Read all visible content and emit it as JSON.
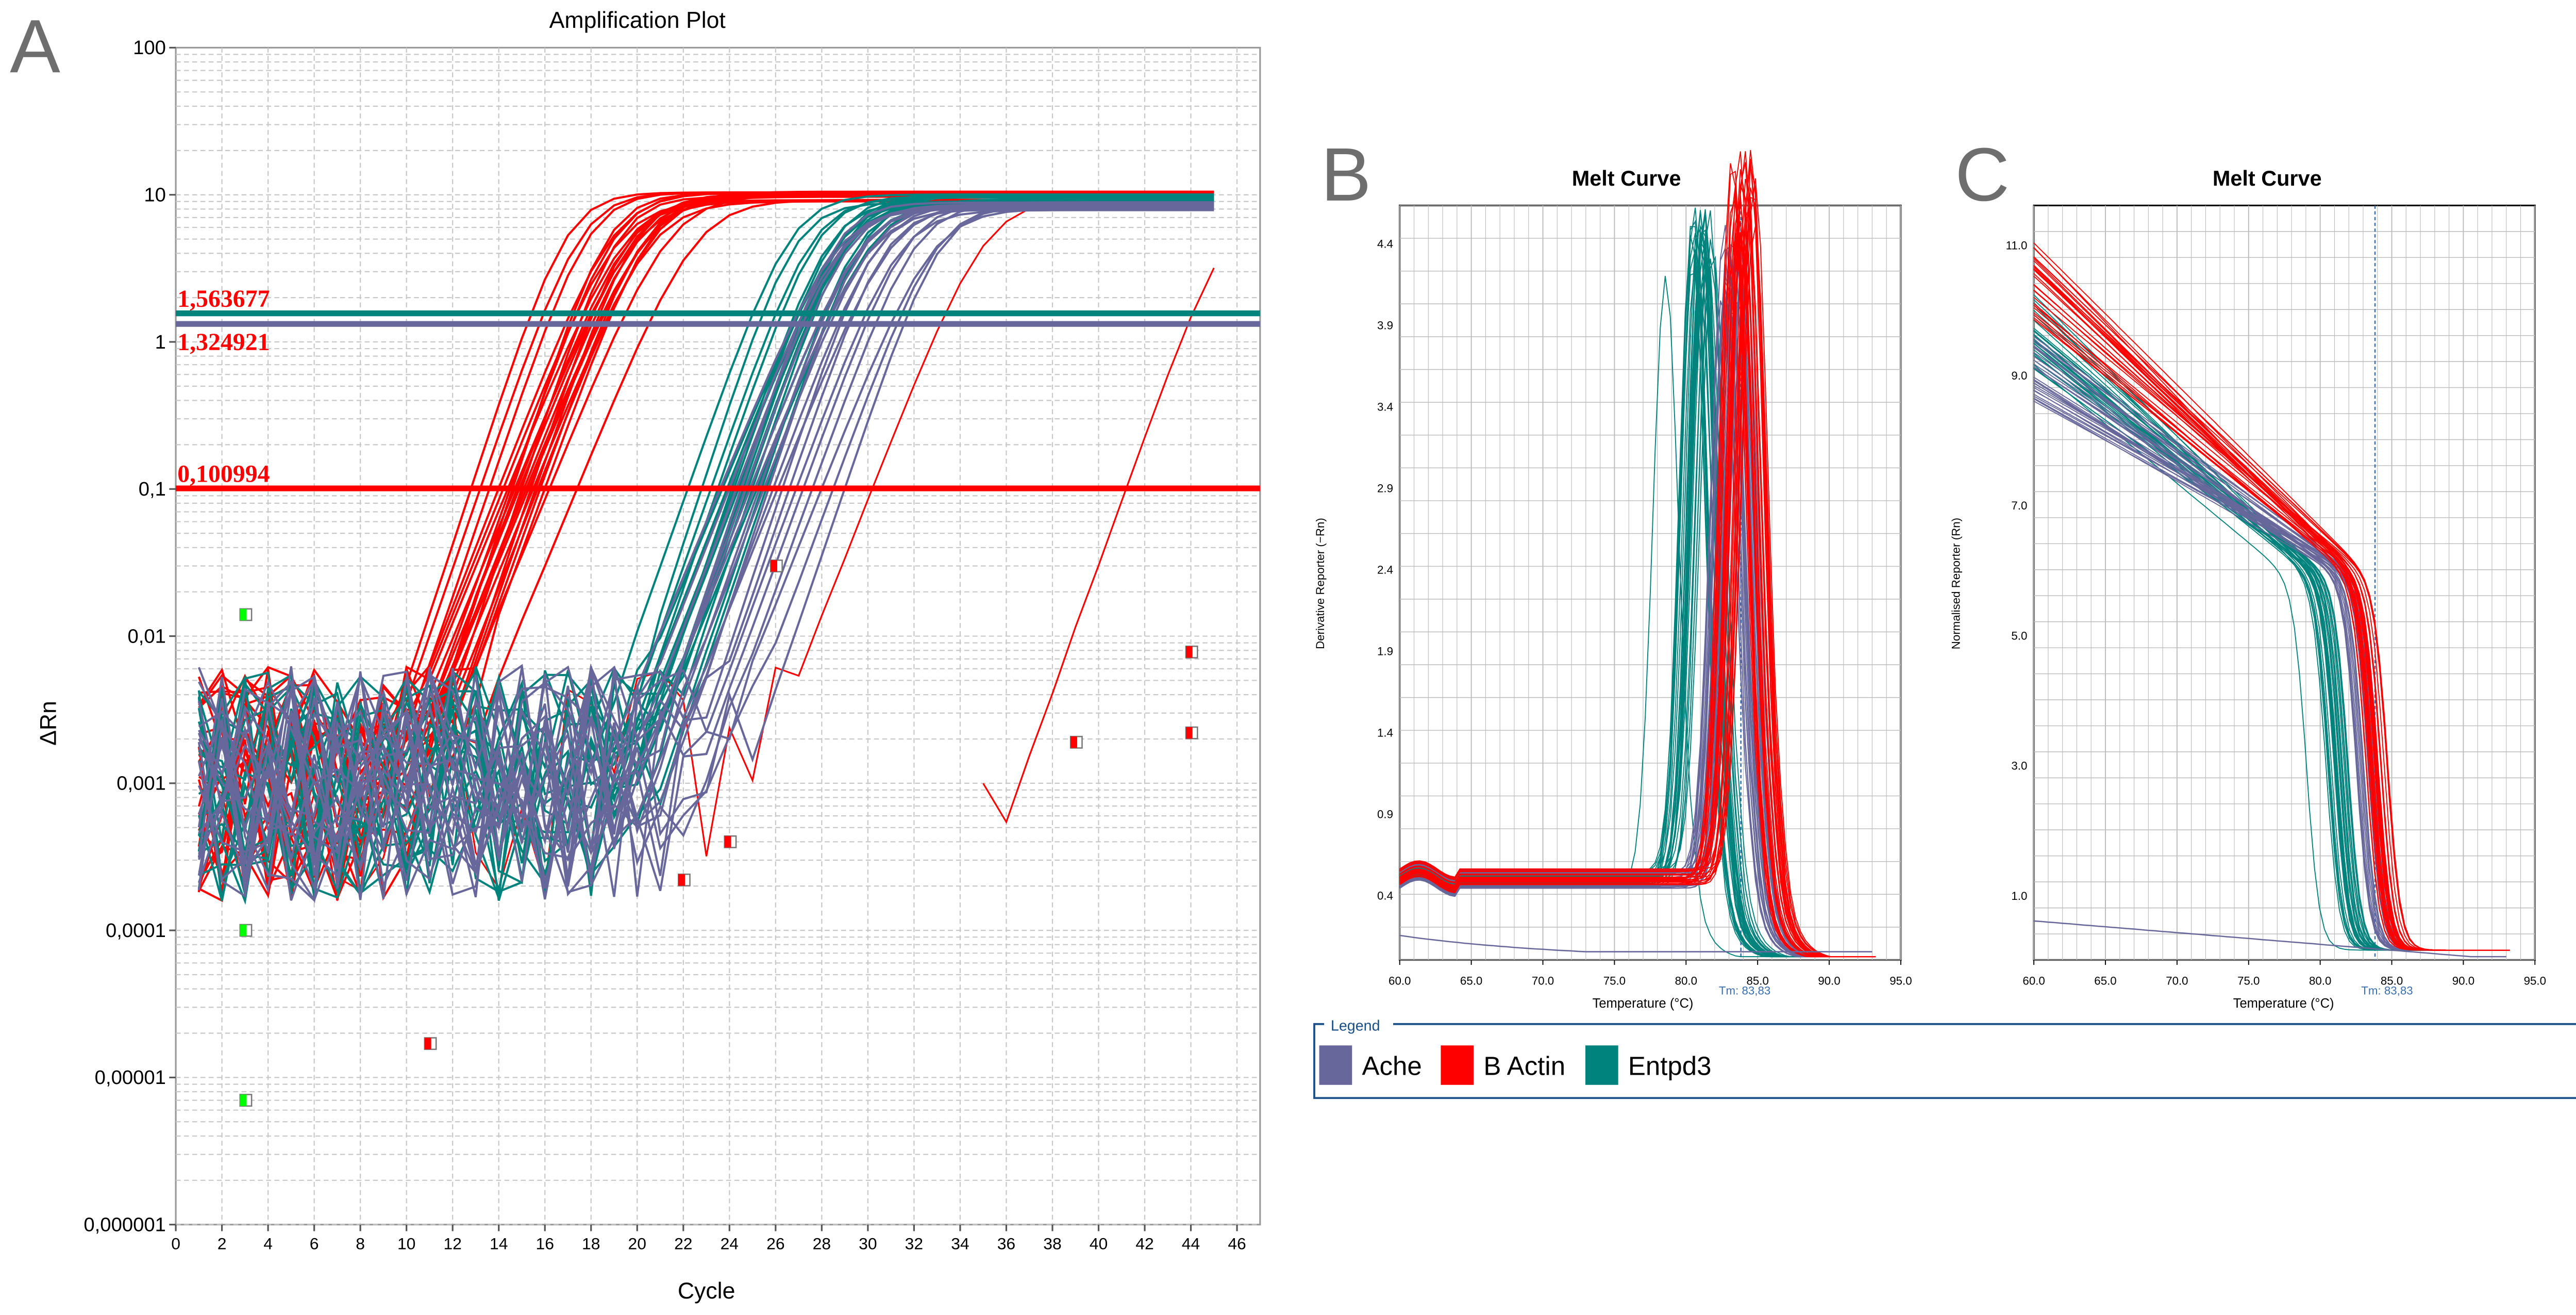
{
  "panels": {
    "a": "A",
    "b": "B",
    "c": "C"
  },
  "legend": {
    "title": "Legend",
    "items": [
      {
        "label": "Ache",
        "color": "#67679b"
      },
      {
        "label": "B Actin",
        "color": "#ff0000"
      },
      {
        "label": "Entpd3",
        "color": "#00827d"
      }
    ]
  },
  "chart_data": [
    {
      "type": "line",
      "title": "Amplification Plot",
      "xlabel": "Cycle",
      "ylabel": "ΔRn",
      "xlim": [
        0,
        47
      ],
      "ylim": [
        1e-06,
        100
      ],
      "yscale": "log",
      "grid": true,
      "xticks": [
        "0",
        "2",
        "4",
        "6",
        "8",
        "10",
        "12",
        "14",
        "16",
        "18",
        "20",
        "22",
        "24",
        "26",
        "28",
        "30",
        "32",
        "34",
        "36",
        "38",
        "40",
        "42",
        "44",
        "46"
      ],
      "yticks": [
        "0,000001",
        "0,00001",
        "0,0001",
        "0,001",
        "0,01",
        "0,1",
        "1",
        "10",
        "100"
      ],
      "thresholds": [
        {
          "label": "1,563677",
          "value": 1.563677,
          "color": "#00827d"
        },
        {
          "label": "1,324921",
          "value": 1.324921,
          "color": "#67679b"
        },
        {
          "label": "0,100994",
          "value": 0.100994,
          "color": "#ff0000"
        }
      ],
      "series": [
        {
          "name": "B Actin",
          "color": "#ff0000",
          "plateau": 10,
          "ct_at_threshold": [
            12.8,
            13.2,
            13.6,
            14.0,
            14.2,
            14.4,
            14.5,
            14.6,
            14.7,
            14.8,
            14.9,
            15.0,
            15.1,
            15.2,
            15.3,
            15.4,
            15.5,
            15.6,
            15.7,
            15.8,
            16.0,
            16.2,
            17.4,
            30.2,
            41.2
          ]
        },
        {
          "name": "Entpd3",
          "color": "#00827d",
          "plateau": 9.6,
          "ct_at_threshold": [
            22.2,
            22.8,
            23.2,
            23.5,
            23.7,
            23.9,
            24.0,
            24.1,
            24.2,
            24.3,
            24.4,
            24.5,
            24.6,
            24.7,
            24.8,
            24.9,
            25.0,
            25.2,
            25.4,
            25.6
          ]
        },
        {
          "name": "Ache",
          "color": "#67679b",
          "plateau": 8.6,
          "ct_at_threshold": [
            23.6,
            24.0,
            24.3,
            24.5,
            24.7,
            24.9,
            25.1,
            25.3,
            25.5,
            25.7,
            25.9,
            26.1,
            26.3,
            26.6,
            26.9,
            27.2,
            27.6,
            28.0,
            28.5,
            29.0
          ]
        }
      ],
      "markers": [
        {
          "cycle": 3,
          "value": 0.014,
          "color": "#00ff00"
        },
        {
          "cycle": 3,
          "value": 0.0001,
          "color": "#00ff00"
        },
        {
          "cycle": 3,
          "value": 7e-06,
          "color": "#00ff00"
        },
        {
          "cycle": 11,
          "value": 1.7e-05,
          "color": "#ff0000"
        },
        {
          "cycle": 22,
          "value": 0.00022,
          "color": "#ff0000"
        },
        {
          "cycle": 24,
          "value": 0.0004,
          "color": "#ff0000"
        },
        {
          "cycle": 26,
          "value": 0.03,
          "color": "#ff0000"
        },
        {
          "cycle": 39,
          "value": 0.0019,
          "color": "#ff0000"
        },
        {
          "cycle": 44,
          "value": 0.0078,
          "color": "#ff0000"
        },
        {
          "cycle": 44,
          "value": 0.0022,
          "color": "#ff0000"
        }
      ]
    },
    {
      "type": "line",
      "title": "Melt Curve",
      "xlabel": "Temperature (°C)",
      "ylabel": "Derivative Reporter (−Rn)",
      "xlim": [
        60,
        95
      ],
      "ylim": [
        0,
        4.63
      ],
      "grid": true,
      "xticks": [
        "60.0",
        "65.0",
        "70.0",
        "75.0",
        "80.0",
        "85.0",
        "90.0",
        "95.0"
      ],
      "yticks": [
        "0.4",
        "0.9",
        "1.4",
        "1.9",
        "2.4",
        "2.9",
        "3.4",
        "3.9",
        "4.4"
      ],
      "tm_label": "Tm: 83,83",
      "tm": 83.83,
      "series": [
        {
          "name": "Ache",
          "color": "#67679b",
          "peak_temp": 83.3,
          "peak_height": 4.0
        },
        {
          "name": "B Actin",
          "color": "#ff0000",
          "peak_temp": 84.0,
          "peak_height": 4.5
        },
        {
          "name": "Entpd3",
          "color": "#00827d",
          "peak_temp": 81.2,
          "peak_height": 4.2
        }
      ]
    },
    {
      "type": "line",
      "title": "Melt Curve",
      "xlabel": "Temperature (°C)",
      "ylabel": "Normalised Reporter (Rn)",
      "xlim": [
        60,
        95
      ],
      "ylim": [
        0,
        11.6
      ],
      "grid": true,
      "xticks": [
        "60.0",
        "65.0",
        "70.0",
        "75.0",
        "80.0",
        "85.0",
        "90.0",
        "95.0"
      ],
      "yticks": [
        "1.0",
        "3.0",
        "5.0",
        "7.0",
        "9.0",
        "11.0"
      ],
      "tm_label": "Tm: 83,83",
      "tm": 83.83,
      "series": [
        {
          "name": "Ache",
          "color": "#67679b",
          "start_value": 9.0,
          "melt_temp": 83.3
        },
        {
          "name": "B Actin",
          "color": "#ff0000",
          "start_value": 10.4,
          "melt_temp": 84.0
        },
        {
          "name": "Entpd3",
          "color": "#00827d",
          "start_value": 9.6,
          "melt_temp": 81.2
        }
      ]
    }
  ]
}
